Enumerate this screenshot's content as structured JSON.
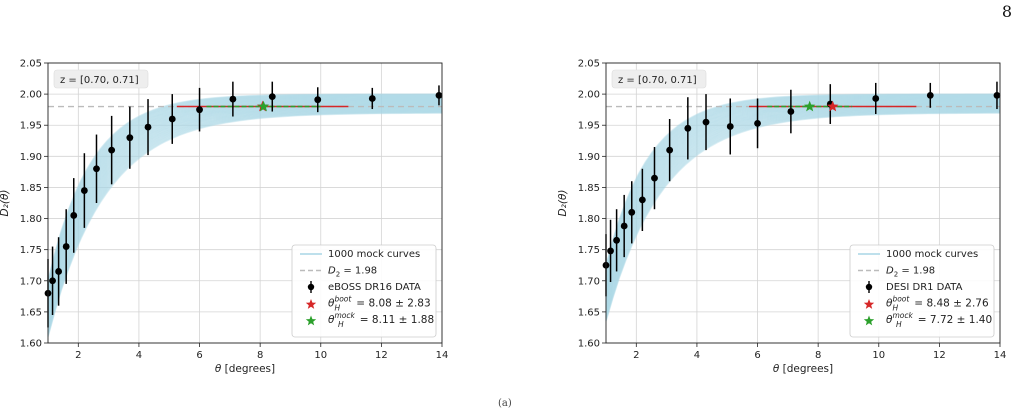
{
  "page_number": "8",
  "caption_fragment": "(a)",
  "chart_data": [
    {
      "type": "scatter",
      "annotation": "z = [0.70, 0.71]",
      "xlabel": "θ [degrees]",
      "ylabel": "D₂(θ)",
      "xlim": [
        1,
        14
      ],
      "ylim": [
        1.6,
        2.05
      ],
      "xticks": [
        2,
        4,
        6,
        8,
        10,
        12,
        14
      ],
      "yticks": [
        1.6,
        1.65,
        1.7,
        1.75,
        1.8,
        1.85,
        1.9,
        1.95,
        2.0,
        2.05
      ],
      "grid": true,
      "legend_position": "lower-right",
      "mock_band": {
        "label": "1000 mock curves",
        "color": "#a9d6e5",
        "center_top": 1.985
      },
      "reference_line": {
        "label": "D₂ = 1.98",
        "y": 1.98,
        "color": "#bbbbbb"
      },
      "data_series": {
        "label": "eBOSS DR16 DATA",
        "color": "#000000",
        "x": [
          1.0,
          1.15,
          1.35,
          1.6,
          1.85,
          2.2,
          2.6,
          3.1,
          3.7,
          4.3,
          5.1,
          6.0,
          7.1,
          8.4,
          9.9,
          11.7,
          13.9
        ],
        "y": [
          1.68,
          1.7,
          1.715,
          1.755,
          1.805,
          1.845,
          1.88,
          1.91,
          1.93,
          1.947,
          1.96,
          1.975,
          1.992,
          1.996,
          1.991,
          1.993,
          1.998
        ],
        "yerr": [
          0.055,
          0.055,
          0.055,
          0.06,
          0.06,
          0.06,
          0.055,
          0.055,
          0.05,
          0.045,
          0.04,
          0.035,
          0.028,
          0.024,
          0.02,
          0.017,
          0.016
        ]
      },
      "boot": {
        "label": "θ_H^boot = 8.08 ± 2.83",
        "value": 8.08,
        "err": 2.83,
        "y": 1.98,
        "color": "#d62728"
      },
      "mock": {
        "label": "θ_H^mock = 8.11 ± 1.88",
        "value": 8.11,
        "err": 1.88,
        "y": 1.98,
        "color": "#2ca02c"
      }
    },
    {
      "type": "scatter",
      "annotation": "z = [0.70, 0.71]",
      "xlabel": "θ [degrees]",
      "ylabel": "D₂(θ)",
      "xlim": [
        1,
        14
      ],
      "ylim": [
        1.6,
        2.05
      ],
      "xticks": [
        2,
        4,
        6,
        8,
        10,
        12,
        14
      ],
      "yticks": [
        1.6,
        1.65,
        1.7,
        1.75,
        1.8,
        1.85,
        1.9,
        1.95,
        2.0,
        2.05
      ],
      "grid": true,
      "legend_position": "lower-right",
      "mock_band": {
        "label": "1000 mock curves",
        "color": "#a9d6e5",
        "center_top": 1.985
      },
      "reference_line": {
        "label": "D₂ = 1.98",
        "y": 1.98,
        "color": "#bbbbbb"
      },
      "data_series": {
        "label": "DESI DR1 DATA",
        "color": "#000000",
        "x": [
          1.0,
          1.15,
          1.35,
          1.6,
          1.85,
          2.2,
          2.6,
          3.1,
          3.7,
          4.3,
          5.1,
          6.0,
          7.1,
          8.4,
          9.9,
          11.7,
          13.9
        ],
        "y": [
          1.725,
          1.748,
          1.765,
          1.788,
          1.81,
          1.83,
          1.865,
          1.91,
          1.945,
          1.955,
          1.948,
          1.953,
          1.972,
          1.984,
          1.993,
          1.998,
          1.998
        ],
        "yerr": [
          0.05,
          0.05,
          0.05,
          0.05,
          0.05,
          0.05,
          0.05,
          0.05,
          0.05,
          0.045,
          0.045,
          0.04,
          0.035,
          0.032,
          0.025,
          0.02,
          0.022
        ]
      },
      "boot": {
        "label": "θ_H^boot = 8.48 ± 2.76",
        "value": 8.48,
        "err": 2.76,
        "y": 1.98,
        "color": "#d62728"
      },
      "mock": {
        "label": "θ_H^mock = 7.72 ± 1.40",
        "value": 7.72,
        "err": 1.4,
        "y": 1.98,
        "color": "#2ca02c"
      }
    }
  ]
}
